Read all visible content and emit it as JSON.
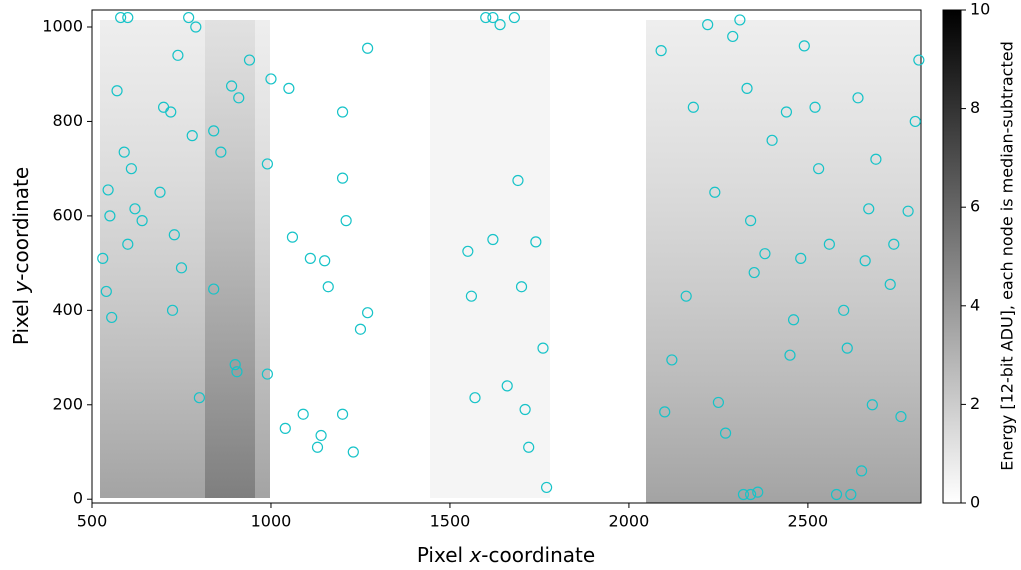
{
  "chart_data": {
    "type": "scatter",
    "xlabel": [
      "Pixel ",
      "x",
      "-coordinate"
    ],
    "ylabel": [
      "Pixel ",
      "y",
      "-coordinate"
    ],
    "xlim": [
      500,
      2816
    ],
    "ylim": [
      -8,
      1036
    ],
    "xticks": [
      500,
      1000,
      1500,
      2000,
      2500
    ],
    "yticks": [
      0,
      200,
      400,
      600,
      800,
      1000
    ],
    "colorbar": {
      "label": "Energy [12-bit ADU], each node is median-subtracted",
      "lim": [
        0,
        10
      ],
      "ticks": [
        0,
        2,
        4,
        6,
        8,
        10
      ]
    },
    "series": [
      {
        "color": "#17c3c8",
        "x": [
          530,
          540,
          545,
          550,
          555,
          570,
          590,
          600,
          610,
          620,
          640,
          690,
          700,
          720,
          725,
          730,
          740,
          750,
          770,
          780,
          790,
          800,
          840,
          840,
          860,
          890,
          900,
          905,
          910,
          940,
          990,
          990,
          1000,
          1040,
          1050,
          1060,
          1090,
          1110,
          1130,
          1140,
          1150,
          1160,
          1200,
          1200,
          1200,
          1210,
          1230,
          1250,
          1270,
          1270,
          1550,
          1560,
          1570,
          1620,
          1640,
          1660,
          1680,
          1690,
          1700,
          1710,
          1720,
          1740,
          1760,
          1770,
          2090,
          2100,
          2120,
          2160,
          2180,
          2220,
          2240,
          2250,
          2270,
          2290,
          2310,
          2330,
          2340,
          2350,
          2380,
          2400,
          2440,
          2450,
          2460,
          2480,
          2490,
          2520,
          2530,
          2560,
          2600,
          2610,
          2640,
          2650,
          2660,
          2670,
          2680,
          2690,
          2730,
          2740,
          2760,
          2780,
          2800,
          2810,
          1600,
          1620,
          580,
          600,
          2340,
          2360,
          2320,
          2580,
          2620
        ],
        "y": [
          510,
          440,
          655,
          600,
          385,
          865,
          735,
          540,
          700,
          615,
          590,
          650,
          830,
          820,
          400,
          560,
          940,
          490,
          1020,
          770,
          1000,
          215,
          445,
          780,
          735,
          875,
          285,
          270,
          850,
          930,
          710,
          265,
          890,
          150,
          870,
          555,
          180,
          510,
          110,
          135,
          505,
          450,
          820,
          680,
          180,
          590,
          100,
          360,
          955,
          395,
          525,
          430,
          215,
          550,
          1005,
          240,
          1020,
          675,
          450,
          190,
          110,
          545,
          320,
          25,
          950,
          185,
          295,
          430,
          830,
          1005,
          650,
          205,
          140,
          980,
          1015,
          870,
          590,
          480,
          520,
          760,
          820,
          305,
          380,
          510,
          960,
          830,
          700,
          540,
          400,
          320,
          850,
          60,
          505,
          615,
          200,
          720,
          455,
          540,
          175,
          610,
          800,
          930,
          1020,
          1020,
          1020,
          1020,
          10,
          15,
          10,
          10,
          10
        ]
      }
    ]
  }
}
